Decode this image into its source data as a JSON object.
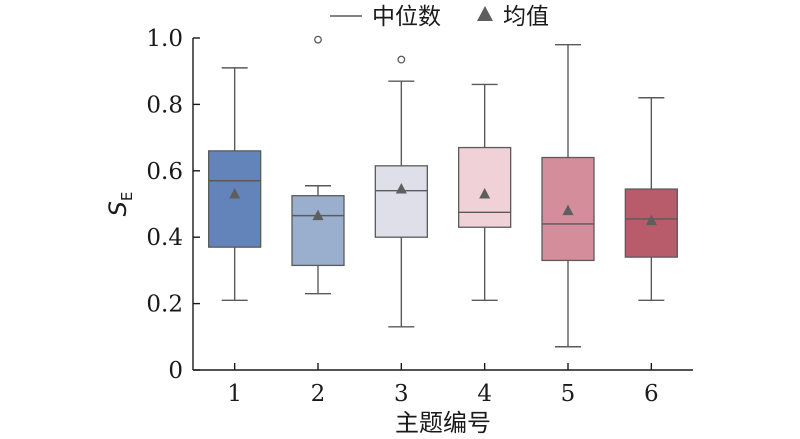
{
  "chart_data": {
    "type": "box",
    "xlabel": "主题编号",
    "ylabel": "S",
    "ylabel_subscript": "E",
    "ylim": [
      0,
      1.0
    ],
    "yticks": [
      "0",
      "0.2",
      "0.4",
      "0.6",
      "0.8",
      "1.0"
    ],
    "yticks_values": [
      0,
      0.2,
      0.4,
      0.6,
      0.8,
      1.0
    ],
    "grid": false,
    "legend": {
      "placement": "top-center",
      "median_label": "中位数",
      "mean_label": "均值"
    },
    "categories": [
      "1",
      "2",
      "3",
      "4",
      "5",
      "6"
    ],
    "boxes": [
      {
        "category": "1",
        "whisker_low": 0.21,
        "q1": 0.37,
        "median": 0.57,
        "q3": 0.66,
        "whisker_high": 0.91,
        "mean": 0.53,
        "outliers": [],
        "color": "#6383bb"
      },
      {
        "category": "2",
        "whisker_low": 0.23,
        "q1": 0.315,
        "median": 0.465,
        "q3": 0.525,
        "whisker_high": 0.555,
        "mean": 0.465,
        "outliers": [
          0.995
        ],
        "color": "#9aafcd"
      },
      {
        "category": "3",
        "whisker_low": 0.13,
        "q1": 0.4,
        "median": 0.54,
        "q3": 0.615,
        "whisker_high": 0.87,
        "mean": 0.545,
        "outliers": [
          0.935
        ],
        "color": "#dedfe8"
      },
      {
        "category": "4",
        "whisker_low": 0.21,
        "q1": 0.43,
        "median": 0.475,
        "q3": 0.67,
        "whisker_high": 0.86,
        "mean": 0.53,
        "outliers": [],
        "color": "#f0d1d7"
      },
      {
        "category": "5",
        "whisker_low": 0.07,
        "q1": 0.33,
        "median": 0.44,
        "q3": 0.64,
        "whisker_high": 0.98,
        "mean": 0.48,
        "outliers": [],
        "color": "#d38d9b"
      },
      {
        "category": "6",
        "whisker_low": 0.21,
        "q1": 0.34,
        "median": 0.455,
        "q3": 0.545,
        "whisker_high": 0.82,
        "mean": 0.45,
        "outliers": [],
        "color": "#b85c6b"
      }
    ],
    "style": {
      "line_color": "#5a5a5a",
      "mean_marker_color": "#5e5e5e",
      "axis_color": "#1a1a1a"
    }
  }
}
